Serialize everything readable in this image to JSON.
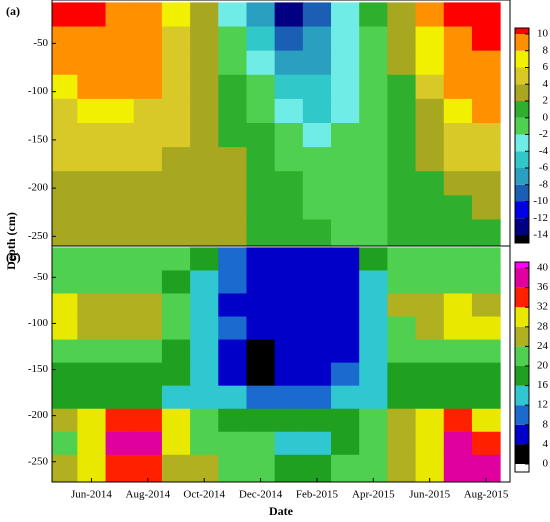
{
  "chart_data": [
    {
      "type": "contour",
      "title": "(a)",
      "ylabel": "Depth (cm)",
      "x": [
        4,
        5,
        6,
        7,
        8,
        9,
        10,
        11,
        12,
        13,
        14,
        15,
        16,
        17,
        18,
        19
      ],
      "depth": [
        -20,
        -45,
        -70,
        -95,
        -120,
        -145,
        -170,
        -195,
        -220,
        -245
      ],
      "z": [
        [
          11,
          10,
          9,
          8,
          6,
          3,
          -3,
          -8,
          -13,
          -9,
          -3,
          0,
          3,
          8,
          10,
          11
        ],
        [
          9,
          9,
          9,
          8,
          5,
          3,
          -2,
          -6,
          -10,
          -8,
          -4,
          -1,
          2,
          7,
          9,
          10
        ],
        [
          8,
          9,
          9,
          8,
          5,
          3,
          -1,
          -4,
          -8,
          -7,
          -4,
          -1,
          2,
          6,
          8,
          9
        ],
        [
          6,
          8,
          9,
          8,
          4,
          3,
          0,
          -2,
          -6,
          -6,
          -3,
          -1,
          1,
          4,
          8,
          9
        ],
        [
          5,
          6,
          6,
          5,
          4,
          3,
          1,
          -1,
          -4,
          -5,
          -3,
          -1,
          1,
          3,
          6,
          8
        ],
        [
          4,
          4,
          4,
          4,
          4,
          3,
          1,
          0,
          -2,
          -3,
          -2,
          -1,
          0,
          3,
          5,
          5
        ],
        [
          4,
          4,
          4,
          4,
          3,
          3,
          2,
          0,
          -1,
          -1,
          -1,
          -1,
          0,
          2,
          4,
          4
        ],
        [
          3,
          3,
          3,
          3,
          3,
          3,
          2,
          0,
          0,
          -1,
          -1,
          -1,
          0,
          1,
          2,
          3
        ],
        [
          3,
          3,
          2,
          2,
          2,
          2,
          2,
          1,
          0,
          -1,
          -1,
          -1,
          0,
          1,
          1,
          2
        ],
        [
          3,
          2,
          2,
          2,
          2,
          2,
          2,
          1,
          0,
          0,
          -1,
          -1,
          0,
          1,
          1,
          1
        ]
      ],
      "xlim": [
        3.6,
        19.85
      ],
      "ylim": [
        -260,
        -5
      ],
      "yticks": [
        -50,
        -100,
        -150,
        -200,
        -250
      ],
      "colorbar": {
        "levels": [
          -16,
          -14,
          -12,
          -10,
          -8,
          -6,
          -4,
          -2,
          0,
          2,
          4,
          6,
          8,
          10,
          12
        ],
        "colors": [
          "#000000",
          "#000080",
          "#0000e6",
          "#1a5fb4",
          "#2a9fc0",
          "#30c8c8",
          "#70ece6",
          "#50d050",
          "#2eaf2e",
          "#a8a820",
          "#d8c828",
          "#f0f000",
          "#ff9000",
          "#ff0000",
          "#c800c8"
        ],
        "ticks": [
          -14,
          -12,
          -10,
          -8,
          -6,
          -4,
          -2,
          0,
          2,
          4,
          6,
          8,
          10
        ]
      }
    },
    {
      "type": "contour",
      "title": "(b)",
      "xlabel": "Date",
      "x": [
        4,
        5,
        6,
        7,
        8,
        9,
        10,
        11,
        12,
        13,
        14,
        15,
        16,
        17,
        18,
        19
      ],
      "depth": [
        -30,
        -55,
        -80,
        -105,
        -130,
        -155,
        -180,
        -205,
        -230,
        -255
      ],
      "z": [
        [
          22,
          22,
          20,
          20,
          20,
          16,
          10,
          6,
          6,
          6,
          6,
          16,
          20,
          20,
          20,
          20
        ],
        [
          20,
          20,
          20,
          20,
          18,
          14,
          8,
          6,
          4,
          6,
          6,
          14,
          20,
          20,
          20,
          20
        ],
        [
          28,
          26,
          24,
          26,
          22,
          14,
          6,
          6,
          6,
          6,
          6,
          14,
          24,
          26,
          28,
          26
        ],
        [
          28,
          26,
          24,
          26,
          22,
          14,
          8,
          6,
          6,
          6,
          6,
          14,
          22,
          26,
          28,
          28
        ],
        [
          20,
          20,
          20,
          20,
          18,
          12,
          4,
          2,
          4,
          6,
          6,
          12,
          20,
          20,
          20,
          20
        ],
        [
          18,
          18,
          18,
          16,
          16,
          12,
          6,
          2,
          6,
          6,
          8,
          12,
          18,
          18,
          18,
          18
        ],
        [
          16,
          16,
          16,
          16,
          14,
          14,
          12,
          10,
          8,
          8,
          12,
          14,
          16,
          16,
          16,
          16
        ],
        [
          24,
          28,
          32,
          32,
          28,
          20,
          16,
          16,
          16,
          18,
          18,
          20,
          24,
          28,
          32,
          30
        ],
        [
          22,
          28,
          36,
          36,
          28,
          22,
          20,
          20,
          14,
          14,
          18,
          22,
          24,
          28,
          36,
          32
        ],
        [
          24,
          28,
          34,
          32,
          26,
          24,
          22,
          20,
          16,
          16,
          20,
          22,
          24,
          30,
          36,
          38
        ]
      ],
      "xlim": [
        3.6,
        19.85
      ],
      "ylim": [
        -272,
        -16
      ],
      "yticks": [
        -50,
        -100,
        -150,
        -200,
        -250
      ],
      "xticks": [
        {
          "value": 5,
          "label": "Jun-2014"
        },
        {
          "value": 7,
          "label": "Aug-2014"
        },
        {
          "value": 9,
          "label": "Oct-2014"
        },
        {
          "value": 11,
          "label": "Dec-2014"
        },
        {
          "value": 13,
          "label": "Feb-2015"
        },
        {
          "value": 15,
          "label": "Apr-2015"
        },
        {
          "value": 17,
          "label": "Jun-2015"
        },
        {
          "value": 19,
          "label": "Aug-2015"
        }
      ],
      "colorbar": {
        "levels": [
          0,
          4,
          8,
          12,
          16,
          20,
          24,
          28,
          32,
          36,
          40,
          44
        ],
        "colors": [
          "#000000",
          "#0000c8",
          "#1a6ad0",
          "#30c8d0",
          "#20a020",
          "#50d050",
          "#b0b020",
          "#e8e800",
          "#ff2000",
          "#e000a0",
          "#ff00ff"
        ],
        "ticks": [
          0,
          4,
          8,
          12,
          16,
          20,
          24,
          28,
          32,
          36,
          40
        ]
      }
    }
  ]
}
